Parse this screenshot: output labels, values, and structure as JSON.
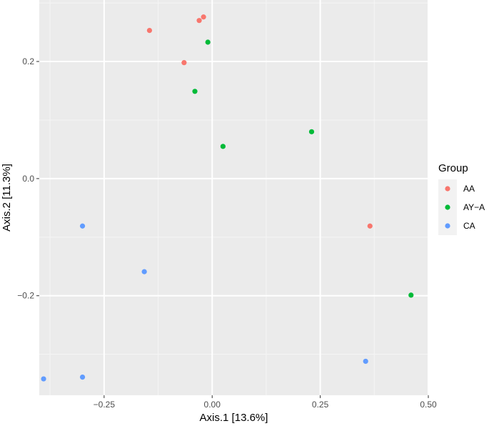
{
  "chart_data": {
    "type": "scatter",
    "xlabel": "Axis.1   [13.6%]",
    "ylabel": "Axis.2   [11.3%]",
    "xlim": [
      -0.4,
      0.5
    ],
    "ylim": [
      -0.37,
      0.305
    ],
    "x_ticks": [
      -0.25,
      0,
      0.25,
      0.5
    ],
    "x_tick_labels": [
      "−0.25",
      "0.00",
      "0.25",
      "0.50"
    ],
    "y_ticks": [
      -0.2,
      0,
      0.2
    ],
    "y_tick_labels": [
      "−0.2",
      "0.0",
      "0.2"
    ],
    "grid": true,
    "legend": {
      "title": "Group",
      "placement": "right",
      "entries": [
        "AA",
        "AY−A",
        "CA"
      ]
    },
    "series": [
      {
        "name": "AA",
        "color": "#F8766D",
        "points": [
          {
            "x": -0.145,
            "y": 0.253
          },
          {
            "x": -0.03,
            "y": 0.27
          },
          {
            "x": -0.02,
            "y": 0.276
          },
          {
            "x": -0.065,
            "y": 0.198
          },
          {
            "x": 0.365,
            "y": -0.081
          }
        ]
      },
      {
        "name": "AY−A",
        "color": "#00BA38",
        "points": [
          {
            "x": -0.01,
            "y": 0.233
          },
          {
            "x": -0.04,
            "y": 0.149
          },
          {
            "x": 0.025,
            "y": 0.055
          },
          {
            "x": 0.23,
            "y": 0.08
          },
          {
            "x": 0.46,
            "y": -0.199
          }
        ]
      },
      {
        "name": "CA",
        "color": "#619CFF",
        "points": [
          {
            "x": -0.3,
            "y": -0.081
          },
          {
            "x": -0.157,
            "y": -0.159
          },
          {
            "x": -0.3,
            "y": -0.339
          },
          {
            "x": -0.39,
            "y": -0.342
          },
          {
            "x": 0.355,
            "y": -0.312
          }
        ]
      }
    ]
  }
}
